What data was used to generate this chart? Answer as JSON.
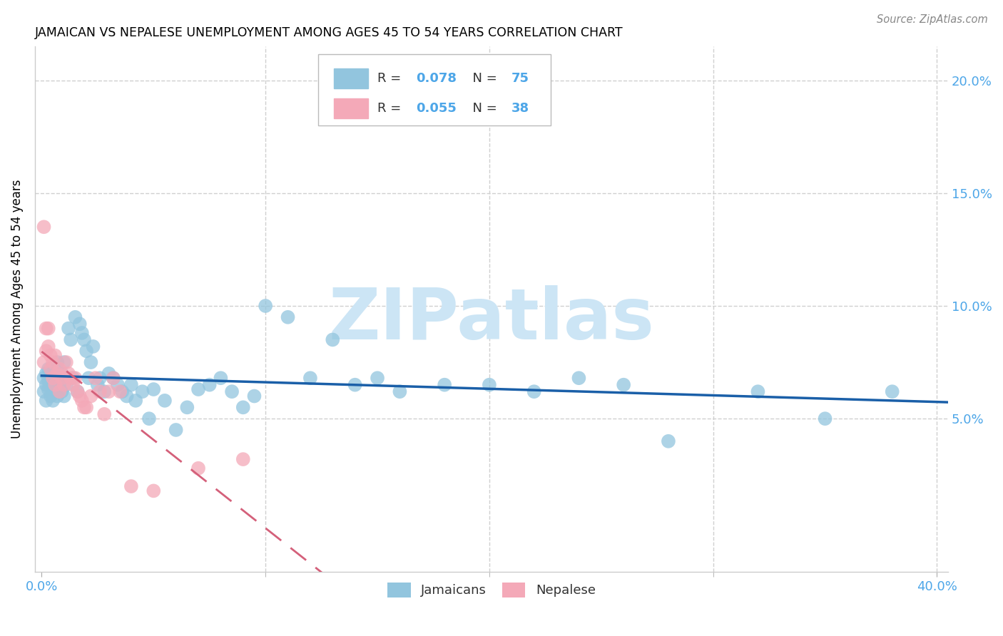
{
  "title": "JAMAICAN VS NEPALESE UNEMPLOYMENT AMONG AGES 45 TO 54 YEARS CORRELATION CHART",
  "source": "Source: ZipAtlas.com",
  "ylabel": "Unemployment Among Ages 45 to 54 years",
  "jamaicans_R": 0.078,
  "jamaicans_N": 75,
  "nepalese_R": 0.055,
  "nepalese_N": 38,
  "jamaican_color": "#92c5de",
  "nepalese_color": "#f4a9b8",
  "jamaican_line_color": "#1a5fa8",
  "nepalese_line_color": "#d4607a",
  "tick_color": "#4da6e8",
  "grid_color": "#d0d0d0",
  "xlim": [
    -0.003,
    0.405
  ],
  "ylim": [
    -0.018,
    0.215
  ],
  "ytick_vals": [
    0.05,
    0.1,
    0.15,
    0.2
  ],
  "ytick_labels": [
    "5.0%",
    "10.0%",
    "15.0%",
    "20.0%"
  ],
  "watermark_color": "#cce5f5",
  "jamaicans_x": [
    0.001,
    0.001,
    0.002,
    0.002,
    0.002,
    0.003,
    0.003,
    0.003,
    0.004,
    0.004,
    0.004,
    0.005,
    0.005,
    0.005,
    0.006,
    0.006,
    0.007,
    0.007,
    0.008,
    0.008,
    0.009,
    0.009,
    0.01,
    0.01,
    0.011,
    0.012,
    0.013,
    0.014,
    0.015,
    0.016,
    0.017,
    0.018,
    0.019,
    0.02,
    0.021,
    0.022,
    0.023,
    0.025,
    0.026,
    0.028,
    0.03,
    0.032,
    0.034,
    0.036,
    0.038,
    0.04,
    0.042,
    0.045,
    0.048,
    0.05,
    0.055,
    0.06,
    0.065,
    0.07,
    0.075,
    0.08,
    0.085,
    0.09,
    0.095,
    0.1,
    0.11,
    0.12,
    0.13,
    0.14,
    0.15,
    0.16,
    0.18,
    0.2,
    0.22,
    0.24,
    0.26,
    0.28,
    0.32,
    0.35,
    0.38
  ],
  "jamaicans_y": [
    0.068,
    0.062,
    0.07,
    0.058,
    0.065,
    0.063,
    0.067,
    0.072,
    0.06,
    0.065,
    0.07,
    0.058,
    0.063,
    0.068,
    0.062,
    0.066,
    0.06,
    0.075,
    0.065,
    0.068,
    0.062,
    0.07,
    0.06,
    0.075,
    0.065,
    0.09,
    0.085,
    0.068,
    0.095,
    0.062,
    0.092,
    0.088,
    0.085,
    0.08,
    0.068,
    0.075,
    0.082,
    0.065,
    0.068,
    0.062,
    0.07,
    0.068,
    0.065,
    0.062,
    0.06,
    0.065,
    0.058,
    0.062,
    0.05,
    0.063,
    0.058,
    0.045,
    0.055,
    0.063,
    0.065,
    0.068,
    0.062,
    0.055,
    0.06,
    0.1,
    0.095,
    0.068,
    0.085,
    0.065,
    0.068,
    0.062,
    0.065,
    0.065,
    0.062,
    0.068,
    0.065,
    0.04,
    0.062,
    0.05,
    0.062
  ],
  "nepalese_x": [
    0.001,
    0.001,
    0.002,
    0.002,
    0.003,
    0.003,
    0.004,
    0.004,
    0.005,
    0.005,
    0.006,
    0.006,
    0.007,
    0.008,
    0.008,
    0.009,
    0.01,
    0.011,
    0.012,
    0.013,
    0.014,
    0.015,
    0.016,
    0.017,
    0.018,
    0.019,
    0.02,
    0.022,
    0.024,
    0.026,
    0.028,
    0.03,
    0.032,
    0.035,
    0.04,
    0.05,
    0.07,
    0.09
  ],
  "nepalese_y": [
    0.135,
    0.075,
    0.09,
    0.08,
    0.09,
    0.082,
    0.072,
    0.078,
    0.068,
    0.075,
    0.078,
    0.065,
    0.07,
    0.072,
    0.062,
    0.068,
    0.065,
    0.075,
    0.07,
    0.068,
    0.065,
    0.068,
    0.062,
    0.06,
    0.058,
    0.055,
    0.055,
    0.06,
    0.068,
    0.062,
    0.052,
    0.062,
    0.068,
    0.062,
    0.02,
    0.018,
    0.028,
    0.032
  ]
}
